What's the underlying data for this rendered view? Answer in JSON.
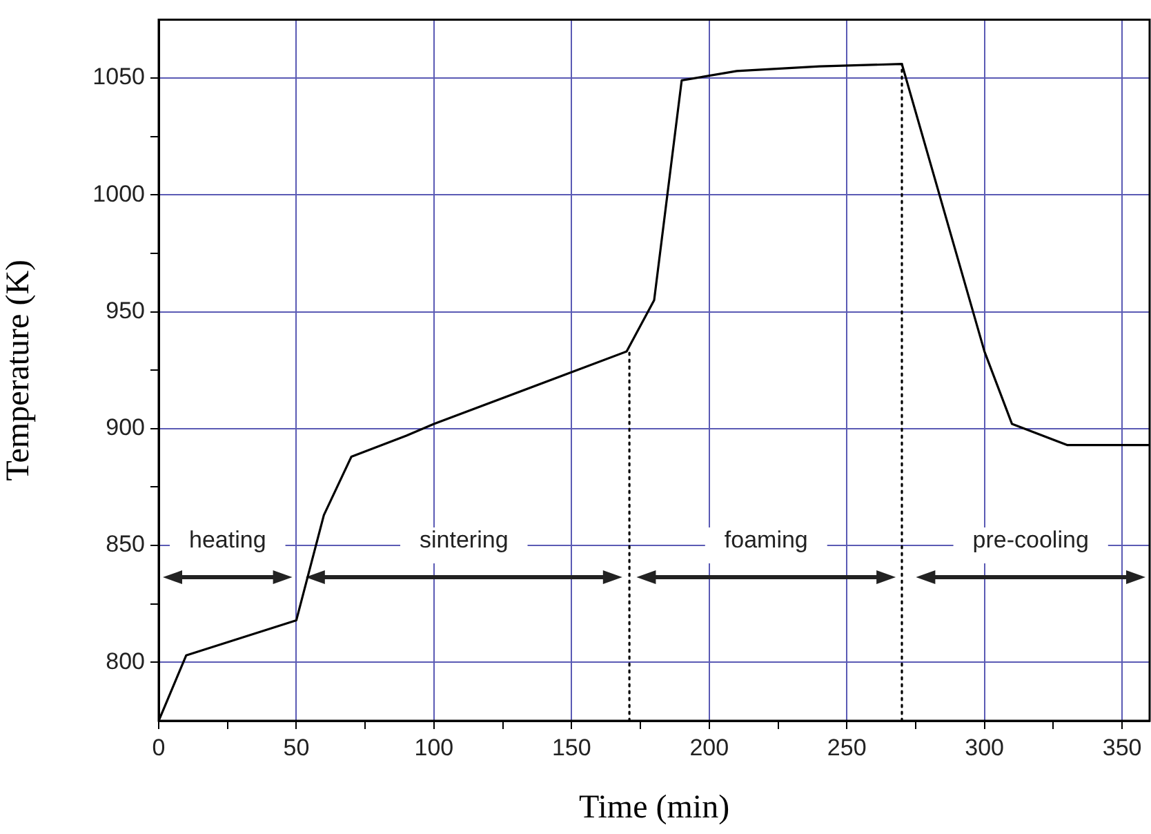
{
  "chart_data": {
    "type": "line",
    "xlabel": "Time (min)",
    "ylabel": "Temperature (K)",
    "xlim": [
      0,
      360
    ],
    "xticks": [
      0,
      {
        "value": 25,
        "label": null
      },
      50,
      {
        "value": 75,
        "label": null
      },
      100,
      {
        "value": 125,
        "label": null
      },
      150,
      {
        "value": 175,
        "label": null
      },
      200,
      {
        "value": 225,
        "label": null
      },
      250,
      {
        "value": 275,
        "label": null
      },
      300,
      {
        "value": 325,
        "label": null
      },
      350
    ],
    "ylim": [
      775,
      1075
    ],
    "yticks": [
      800,
      {
        "value": 825,
        "label": null
      },
      850,
      {
        "value": 875,
        "label": null
      },
      900,
      {
        "value": 925,
        "label": null
      },
      950,
      {
        "value": 975,
        "label": null
      },
      1000,
      {
        "value": 1025,
        "label": null
      },
      1050
    ],
    "grid": true,
    "legend": false,
    "marker": "none",
    "line_style": "solid",
    "series": [
      {
        "color": "#000000",
        "x": [
          0,
          10,
          50,
          60,
          70,
          90,
          100,
          170,
          180,
          190,
          210,
          240,
          270,
          300,
          310,
          330,
          360
        ],
        "values": [
          775,
          803,
          818,
          863,
          888,
          897,
          902,
          933,
          955,
          1049,
          1053,
          1055,
          1056,
          933,
          902,
          893,
          893
        ]
      }
    ],
    "ref_lines": [
      {
        "axis": "x",
        "value": 171,
        "color": "#000000",
        "line_style": "dotted"
      },
      {
        "axis": "x",
        "value": 270,
        "color": "#000000",
        "line_style": "dotted"
      }
    ],
    "annotations": [
      "heating",
      "sintering",
      "foaming",
      "pre-cooling"
    ]
  }
}
